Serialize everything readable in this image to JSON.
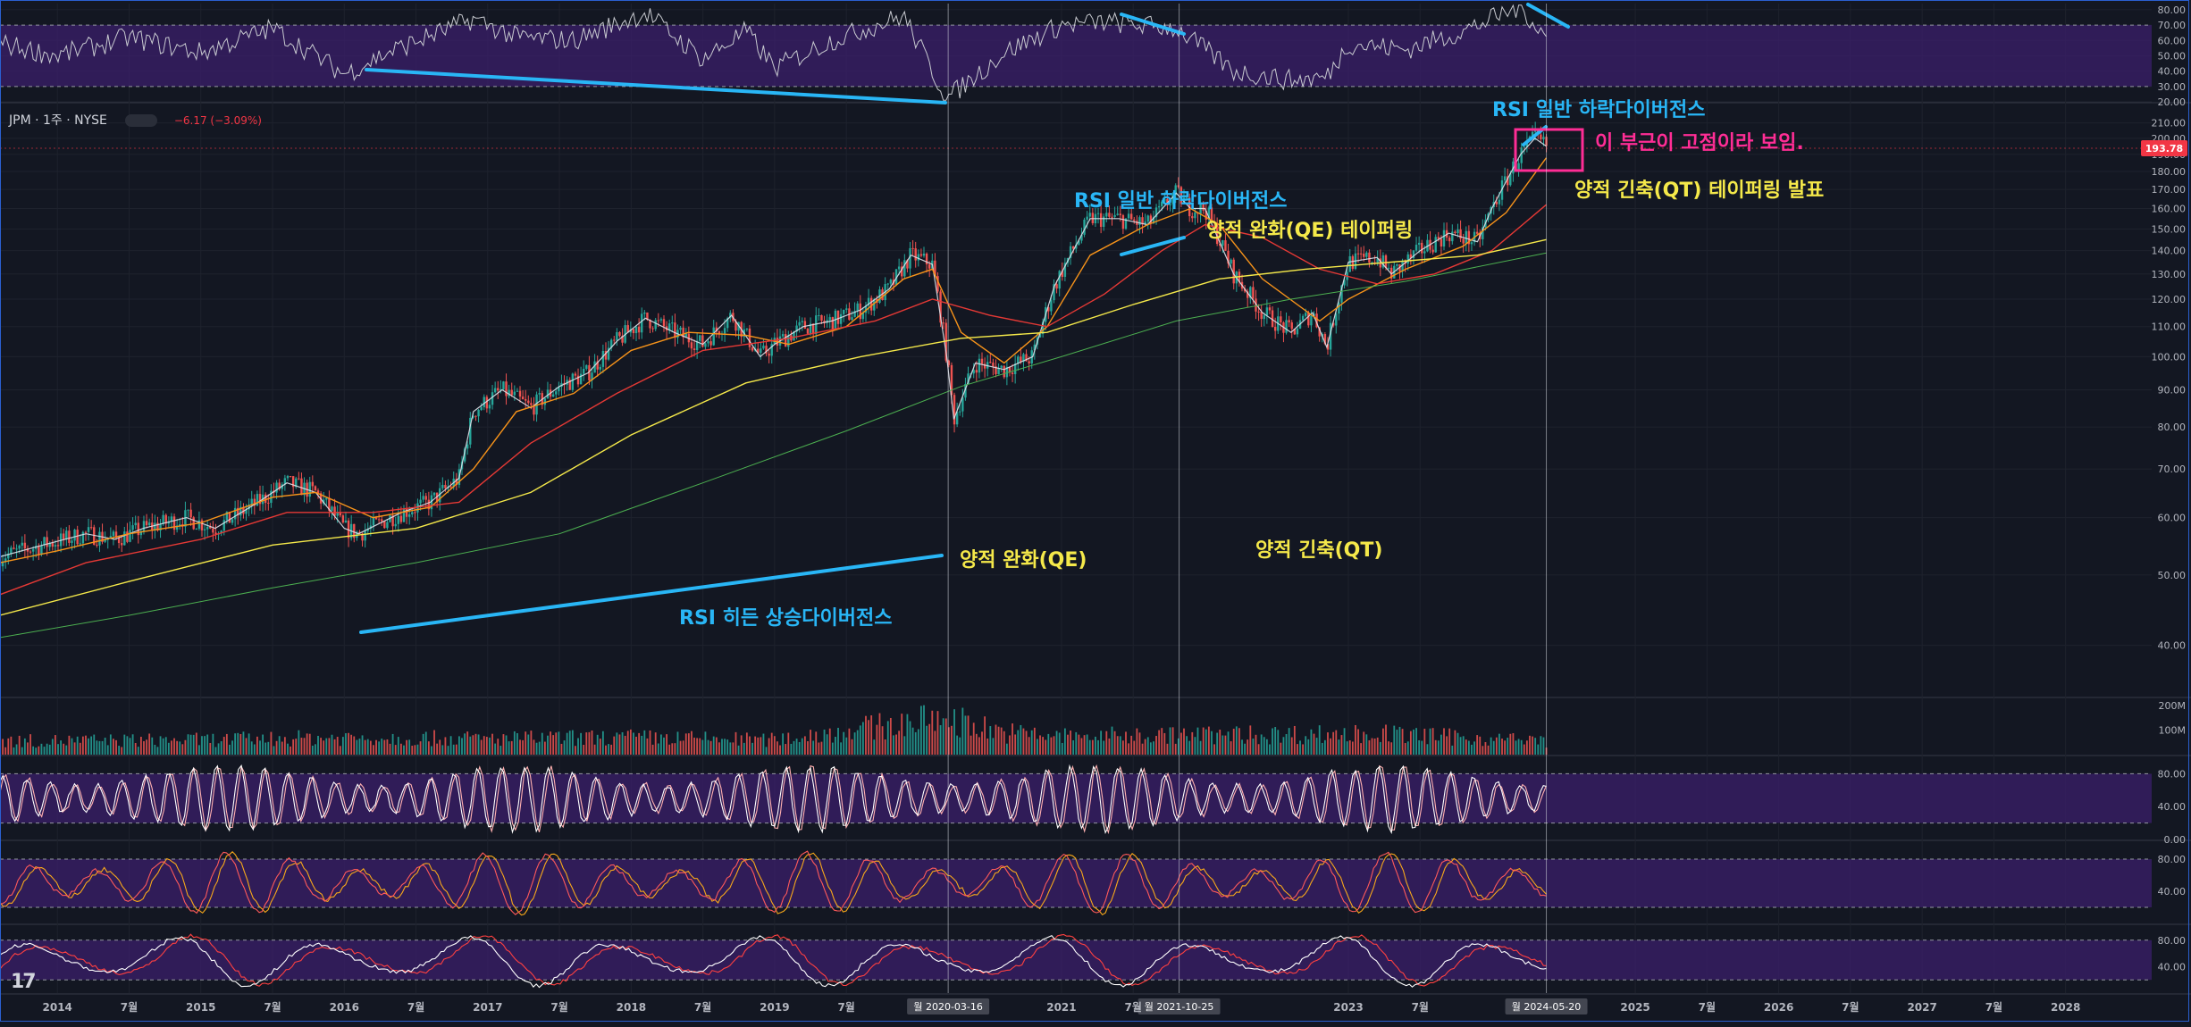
{
  "symbol": {
    "name": "JPM · 1주 · NYSE",
    "change": "−6.17 (−3.09%)",
    "price_tag": "193.78"
  },
  "annotations": [
    {
      "text": "RSI 일반 하락다이버전스",
      "color": "#29b6f6",
      "ax": 1670,
      "ay": 130
    },
    {
      "text": "이 부근이 고점이라 보임.",
      "color": "#ff2d95",
      "ax": 1785,
      "ay": 167
    },
    {
      "text": "양적 긴축(QT) 테이퍼링 발표",
      "color": "#f5e94a",
      "ax": 1762,
      "ay": 220
    },
    {
      "text": "RSI 일반 하락다이버전스",
      "color": "#29b6f6",
      "ax": 1202,
      "ay": 232
    },
    {
      "text": "양적 완화(QE) 테이퍼링",
      "color": "#f5e94a",
      "ax": 1350,
      "ay": 265
    },
    {
      "text": "양적 완화(QE)",
      "color": "#f5e94a",
      "ax": 1074,
      "ay": 634
    },
    {
      "text": "양적 긴축(QT)",
      "color": "#f5e94a",
      "ax": 1405,
      "ay": 623
    },
    {
      "text": "RSI 히든 상승다이버전스",
      "color": "#29b6f6",
      "ax": 760,
      "ay": 699
    }
  ],
  "time_axis": {
    "ticks": [
      {
        "label": "2014",
        "t": 2014.0
      },
      {
        "label": "7월",
        "t": 2014.5
      },
      {
        "label": "2015",
        "t": 2015.0
      },
      {
        "label": "7월",
        "t": 2015.5
      },
      {
        "label": "2016",
        "t": 2016.0
      },
      {
        "label": "7월",
        "t": 2016.5
      },
      {
        "label": "2017",
        "t": 2017.0
      },
      {
        "label": "7월",
        "t": 2017.5
      },
      {
        "label": "2018",
        "t": 2018.0
      },
      {
        "label": "7월",
        "t": 2018.5
      },
      {
        "label": "2019",
        "t": 2019.0
      },
      {
        "label": "7월",
        "t": 2019.5
      },
      {
        "label": "2021",
        "t": 2021.0
      },
      {
        "label": "7월",
        "t": 2021.5
      },
      {
        "label": "2023",
        "t": 2023.0
      },
      {
        "label": "7월",
        "t": 2023.5
      },
      {
        "label": "2025",
        "t": 2025.0
      },
      {
        "label": "7월",
        "t": 2025.5
      },
      {
        "label": "2026",
        "t": 2026.0
      },
      {
        "label": "7월",
        "t": 2026.5
      },
      {
        "label": "2027",
        "t": 2027.0
      },
      {
        "label": "7월",
        "t": 2027.5
      },
      {
        "label": "2028",
        "t": 2028.0
      }
    ],
    "highlights": [
      {
        "label": "월 2020-03-16",
        "t": 2020.21
      },
      {
        "label": "월 2021-10-25",
        "t": 2021.82
      },
      {
        "label": "월 2024-05-20",
        "t": 2024.38
      }
    ]
  },
  "chart_data": [
    {
      "type": "line",
      "title": "",
      "role": "price",
      "yscale": "log",
      "ylim": [
        34,
        222
      ],
      "yticks": [
        40,
        50,
        60,
        70,
        80,
        90,
        100,
        110,
        120,
        130,
        140,
        150,
        160,
        170,
        180,
        190,
        200,
        210
      ],
      "ytick_labels": [
        "40.00",
        "50.00",
        "60.00",
        "70.00",
        "80.00",
        "90.00",
        "100.00",
        "110.00",
        "120.00",
        "130.00",
        "140.00",
        "150.00",
        "160.00",
        "170.00",
        "180.00",
        "190.00",
        "200.00",
        "210.00"
      ],
      "xlim": [
        2013.6,
        2028.6
      ],
      "series": [
        {
          "name": "",
          "color": "#e0e3eb",
          "width": 1.2,
          "points": [
            [
              2013.6,
              53
            ],
            [
              2013.9,
              55
            ],
            [
              2014.2,
              57
            ],
            [
              2014.4,
              56
            ],
            [
              2014.6,
              58
            ],
            [
              2014.9,
              60
            ],
            [
              2015.1,
              58
            ],
            [
              2015.4,
              63
            ],
            [
              2015.6,
              67
            ],
            [
              2015.8,
              65
            ],
            [
              2016.0,
              58
            ],
            [
              2016.1,
              57
            ],
            [
              2016.4,
              61
            ],
            [
              2016.6,
              63
            ],
            [
              2016.8,
              68
            ],
            [
              2016.9,
              84
            ],
            [
              2017.1,
              90
            ],
            [
              2017.3,
              85
            ],
            [
              2017.5,
              91
            ],
            [
              2017.7,
              95
            ],
            [
              2017.9,
              105
            ],
            [
              2018.1,
              113
            ],
            [
              2018.3,
              108
            ],
            [
              2018.5,
              104
            ],
            [
              2018.7,
              114
            ],
            [
              2018.9,
              100
            ],
            [
              2019.0,
              104
            ],
            [
              2019.2,
              110
            ],
            [
              2019.4,
              112
            ],
            [
              2019.6,
              116
            ],
            [
              2019.8,
              124
            ],
            [
              2019.95,
              138
            ],
            [
              2020.1,
              134
            ],
            [
              2020.2,
              100
            ],
            [
              2020.25,
              82
            ],
            [
              2020.4,
              98
            ],
            [
              2020.6,
              96
            ],
            [
              2020.8,
              100
            ],
            [
              2020.95,
              125
            ],
            [
              2021.2,
              155
            ],
            [
              2021.4,
              155
            ],
            [
              2021.6,
              152
            ],
            [
              2021.8,
              168
            ],
            [
              2021.9,
              160
            ],
            [
              2022.0,
              160
            ],
            [
              2022.2,
              130
            ],
            [
              2022.4,
              115
            ],
            [
              2022.6,
              108
            ],
            [
              2022.75,
              115
            ],
            [
              2022.85,
              103
            ],
            [
              2023.0,
              135
            ],
            [
              2023.2,
              137
            ],
            [
              2023.3,
              130
            ],
            [
              2023.5,
              140
            ],
            [
              2023.7,
              148
            ],
            [
              2023.9,
              144
            ],
            [
              2024.0,
              160
            ],
            [
              2024.2,
              190
            ],
            [
              2024.3,
              200
            ],
            [
              2024.38,
              195
            ]
          ]
        },
        {
          "name": "",
          "color": "#f7931a",
          "width": 1.4,
          "points": [
            [
              2013.6,
              52
            ],
            [
              2014.0,
              54
            ],
            [
              2014.5,
              57
            ],
            [
              2015.0,
              59
            ],
            [
              2015.5,
              64
            ],
            [
              2015.8,
              65
            ],
            [
              2016.2,
              60
            ],
            [
              2016.6,
              62
            ],
            [
              2016.9,
              70
            ],
            [
              2017.2,
              84
            ],
            [
              2017.6,
              89
            ],
            [
              2018.0,
              102
            ],
            [
              2018.4,
              108
            ],
            [
              2018.8,
              107
            ],
            [
              2019.1,
              104
            ],
            [
              2019.5,
              110
            ],
            [
              2019.9,
              128
            ],
            [
              2020.1,
              132
            ],
            [
              2020.3,
              108
            ],
            [
              2020.6,
              98
            ],
            [
              2020.9,
              110
            ],
            [
              2021.2,
              138
            ],
            [
              2021.6,
              152
            ],
            [
              2021.9,
              160
            ],
            [
              2022.1,
              152
            ],
            [
              2022.4,
              128
            ],
            [
              2022.8,
              112
            ],
            [
              2023.0,
              120
            ],
            [
              2023.4,
              132
            ],
            [
              2023.8,
              142
            ],
            [
              2024.1,
              158
            ],
            [
              2024.38,
              188
            ]
          ]
        },
        {
          "name": "",
          "color": "#e53935",
          "width": 1.4,
          "points": [
            [
              2013.6,
              47
            ],
            [
              2014.2,
              52
            ],
            [
              2015.0,
              56
            ],
            [
              2015.6,
              61
            ],
            [
              2016.2,
              61
            ],
            [
              2016.8,
              63
            ],
            [
              2017.3,
              76
            ],
            [
              2017.9,
              89
            ],
            [
              2018.5,
              102
            ],
            [
              2019.1,
              106
            ],
            [
              2019.7,
              112
            ],
            [
              2020.1,
              120
            ],
            [
              2020.5,
              114
            ],
            [
              2020.9,
              110
            ],
            [
              2021.3,
              122
            ],
            [
              2021.7,
              140
            ],
            [
              2022.0,
              152
            ],
            [
              2022.4,
              146
            ],
            [
              2022.8,
              132
            ],
            [
              2023.2,
              126
            ],
            [
              2023.6,
              130
            ],
            [
              2024.0,
              140
            ],
            [
              2024.38,
              162
            ]
          ]
        },
        {
          "name": "",
          "color": "#f5e94a",
          "width": 1.4,
          "points": [
            [
              2013.6,
              44
            ],
            [
              2014.5,
              49
            ],
            [
              2015.5,
              55
            ],
            [
              2016.5,
              58
            ],
            [
              2017.3,
              65
            ],
            [
              2018.0,
              78
            ],
            [
              2018.8,
              92
            ],
            [
              2019.6,
              100
            ],
            [
              2020.3,
              106
            ],
            [
              2020.9,
              108
            ],
            [
              2021.5,
              118
            ],
            [
              2022.1,
              128
            ],
            [
              2022.7,
              132
            ],
            [
              2023.3,
              135
            ],
            [
              2023.9,
              138
            ],
            [
              2024.38,
              145
            ]
          ]
        },
        {
          "name": "",
          "color": "#4caf50",
          "width": 1.0,
          "points": [
            [
              2013.6,
              41
            ],
            [
              2014.5,
              44
            ],
            [
              2015.5,
              48
            ],
            [
              2016.5,
              52
            ],
            [
              2017.5,
              57
            ],
            [
              2018.5,
              67
            ],
            [
              2019.5,
              79
            ],
            [
              2020.3,
              91
            ],
            [
              2021.0,
              100
            ],
            [
              2021.8,
              112
            ],
            [
              2022.6,
              120
            ],
            [
              2023.4,
              127
            ],
            [
              2024.38,
              139
            ]
          ]
        }
      ]
    },
    {
      "type": "line",
      "title": "",
      "role": "rsi",
      "ylim": [
        20,
        84
      ],
      "yticks": [
        20,
        30,
        40,
        50,
        60,
        70,
        80
      ],
      "ytick_labels": [
        "20.00",
        "30.00",
        "40.00",
        "50.00",
        "60.00",
        "70.00",
        "80.00"
      ],
      "xlim": [
        2013.6,
        2028.6
      ],
      "series": [
        {
          "name": "",
          "color": "#c8cad0",
          "points": [
            [
              2013.6,
              58
            ],
            [
              2014.0,
              50
            ],
            [
              2014.5,
              62
            ],
            [
              2015.0,
              52
            ],
            [
              2015.5,
              68
            ],
            [
              2016.0,
              38
            ],
            [
              2016.3,
              52
            ],
            [
              2016.9,
              74
            ],
            [
              2017.2,
              62
            ],
            [
              2017.6,
              60
            ],
            [
              2018.1,
              78
            ],
            [
              2018.5,
              48
            ],
            [
              2018.8,
              66
            ],
            [
              2019.0,
              42
            ],
            [
              2019.4,
              60
            ],
            [
              2019.9,
              76
            ],
            [
              2020.2,
              22
            ],
            [
              2020.6,
              52
            ],
            [
              2021.0,
              70
            ],
            [
              2021.3,
              72
            ],
            [
              2021.8,
              68
            ],
            [
              2022.2,
              40
            ],
            [
              2022.6,
              34
            ],
            [
              2022.85,
              36
            ],
            [
              2023.0,
              58
            ],
            [
              2023.4,
              54
            ],
            [
              2023.8,
              66
            ],
            [
              2024.2,
              82
            ],
            [
              2024.38,
              62
            ]
          ]
        }
      ]
    },
    {
      "type": "bar",
      "title": "",
      "role": "volume",
      "ylim": [
        0,
        230
      ],
      "yticks": [
        100,
        200
      ],
      "ytick_labels": [
        "100M",
        "200M"
      ],
      "xlim": [
        2013.6,
        2028.6
      ],
      "x_range": [
        2013.6,
        2024.38
      ],
      "bar_count": 560,
      "series": [
        {
          "name": "",
          "values_profile": [
            [
              2013.6,
              55
            ],
            [
              2015.0,
              60
            ],
            [
              2016.0,
              70
            ],
            [
              2017.0,
              65
            ],
            [
              2018.0,
              70
            ],
            [
              2019.0,
              60
            ],
            [
              2020.2,
              150
            ],
            [
              2020.6,
              90
            ],
            [
              2021.0,
              75
            ],
            [
              2022.0,
              80
            ],
            [
              2023.2,
              85
            ],
            [
              2024.38,
              55
            ]
          ]
        }
      ]
    },
    {
      "type": "line",
      "title": "",
      "role": "oscillator-1",
      "ylim": [
        0,
        100
      ],
      "yticks": [
        0,
        40,
        80
      ],
      "ytick_labels": [
        "0.00",
        "40.00",
        "80.00"
      ],
      "xlim": [
        2013.6,
        2028.6
      ]
    },
    {
      "type": "line",
      "title": "",
      "role": "oscillator-2",
      "ylim": [
        0,
        100
      ],
      "yticks": [
        40,
        80
      ],
      "ytick_labels": [
        "40.00",
        "80.00"
      ],
      "xlim": [
        2013.6,
        2028.6
      ]
    },
    {
      "type": "line",
      "title": "",
      "role": "oscillator-3",
      "ylim": [
        0,
        100
      ],
      "yticks": [
        40,
        80
      ],
      "ytick_labels": [
        "40.00",
        "80.00"
      ],
      "xlim": [
        2013.6,
        2028.6
      ]
    }
  ],
  "colors": {
    "bg": "#131722",
    "grid": "#1e222d",
    "band": "#3b1f6b",
    "up": "#26a69a",
    "down": "#ef5350",
    "label": "#b2b5be",
    "cyan": "#29b6f6",
    "magenta": "#ff2d95",
    "yellow": "#f5e94a"
  }
}
